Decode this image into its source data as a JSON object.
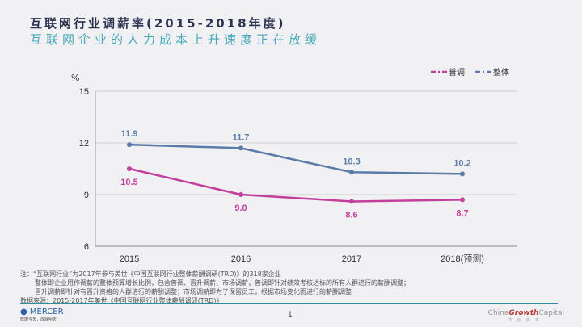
{
  "header": {
    "title": "互联网行业调薪率(2015-2018年度)",
    "subtitle": "互联网企业的人力成本上升速度正在放缓"
  },
  "chart_data": {
    "type": "line",
    "ylabel": "%",
    "ylim": [
      6,
      15
    ],
    "yticks": [
      6,
      9,
      12,
      15
    ],
    "categories": [
      "2015",
      "2016",
      "2017",
      "2018(预测)"
    ],
    "grid": true,
    "legend": "top-right",
    "series": [
      {
        "name": "普调",
        "values": [
          10.5,
          9.0,
          8.6,
          8.7
        ],
        "color": "#c2409c"
      },
      {
        "name": "整体",
        "values": [
          11.9,
          11.7,
          10.3,
          10.2
        ],
        "color": "#5b7ca8"
      }
    ]
  },
  "notes": [
    "注：“互联网行业”为2017年参与美世《中国互联网行业整体薪酬调研(TRD)》的318家企业",
    "整体即企业用作调薪的整体预算增长比例，包含普调、晋升调薪、市场调薪，普调即针对绩效考核达标的所有人群进行的薪酬调整；",
    "晋升调薪即针对有晋升资格的人群进行的薪酬调整；市场调薪即为了保留员工，根据市场变化而进行的薪酬调整",
    "数据来源：2015-2017年美世《中国互联网行业整体薪酬调研(TRD)》"
  ],
  "footer": {
    "mercer": "MERCER",
    "mercer_tag": "健康今天，成就明天",
    "page": "1",
    "cgc_a": "China",
    "cgc_b": "Growth",
    "cgc_c": "Capital",
    "cgc_tag": "华创资本"
  }
}
